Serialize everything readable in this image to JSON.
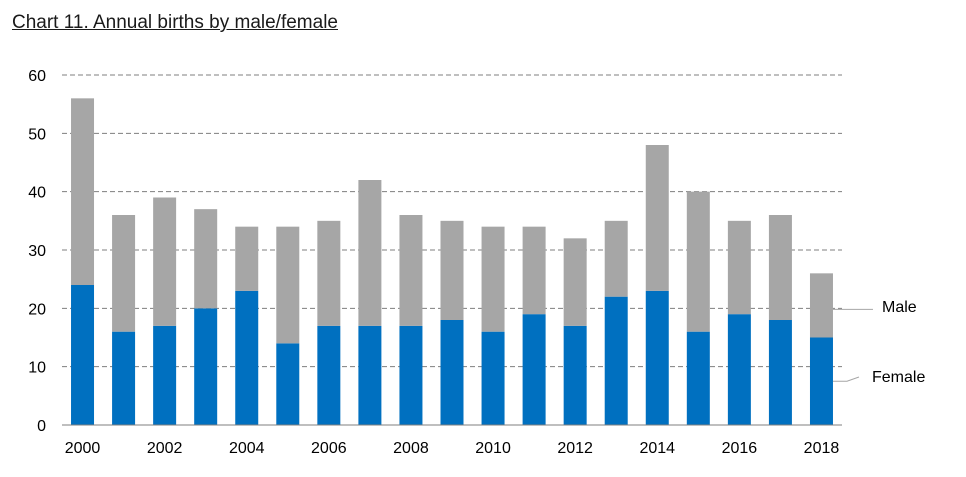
{
  "title": "Chart 11. Annual births by male/female",
  "chart_data": {
    "type": "bar",
    "stacked": true,
    "title": "Chart 11. Annual births by male/female",
    "categories": [
      "2000",
      "2001",
      "2002",
      "2003",
      "2004",
      "2005",
      "2006",
      "2007",
      "2008",
      "2009",
      "2010",
      "2011",
      "2012",
      "2013",
      "2014",
      "2015",
      "2016",
      "2017",
      "2018"
    ],
    "x_tick_labels": [
      "2000",
      "",
      "2002",
      "",
      "2004",
      "",
      "2006",
      "",
      "2008",
      "",
      "2010",
      "",
      "2012",
      "",
      "2014",
      "",
      "2016",
      "",
      "2018"
    ],
    "series": [
      {
        "name": "Female",
        "color": "#0070c0",
        "values": [
          24,
          16,
          17,
          20,
          23,
          14,
          17,
          17,
          17,
          18,
          16,
          19,
          17,
          22,
          23,
          16,
          19,
          18,
          15
        ]
      },
      {
        "name": "Male",
        "color": "#a6a6a6",
        "values": [
          32,
          20,
          22,
          17,
          11,
          20,
          18,
          25,
          19,
          17,
          18,
          15,
          15,
          13,
          25,
          24,
          16,
          18,
          11
        ]
      }
    ],
    "ylim": [
      0,
      60
    ],
    "yticks": [
      0,
      10,
      20,
      30,
      40,
      50,
      60
    ],
    "grid": true,
    "legend": "right, inline labels"
  }
}
